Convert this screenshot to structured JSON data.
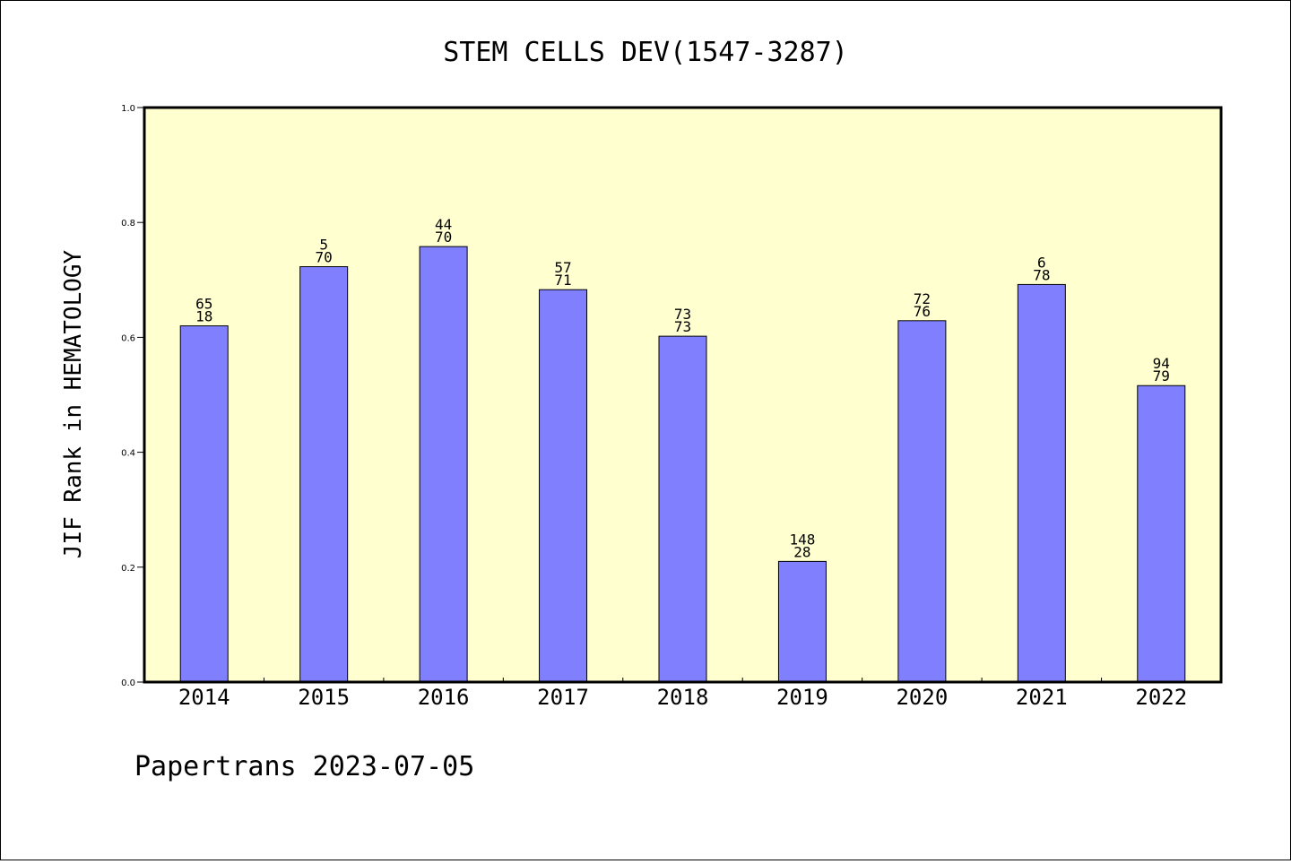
{
  "chart_data": {
    "type": "bar",
    "title": "STEM CELLS DEV(1547-3287)",
    "xlabel": "",
    "ylabel": "JIF Rank in HEMATOLOGY",
    "ylim": [
      0.0,
      1.0
    ],
    "yticks": [
      "0.0",
      "0.2",
      "0.4",
      "0.6",
      "0.8",
      "1.0"
    ],
    "grid": false,
    "categories": [
      "2014",
      "2015",
      "2016",
      "2017",
      "2018",
      "2019",
      "2020",
      "2021",
      "2022"
    ],
    "values": [
      0.62,
      0.723,
      0.758,
      0.683,
      0.602,
      0.21,
      0.629,
      0.692,
      0.516
    ],
    "labels_top": [
      "65",
      "5",
      "44",
      "57",
      "73",
      "148",
      "72",
      "6",
      "94"
    ],
    "labels_bottom": [
      "18",
      "70",
      "70",
      "71",
      "73",
      "28",
      "76",
      "78",
      "79"
    ],
    "bar_color": "#8080ff",
    "plot_background": "#ffffd0"
  },
  "footer": "Papertrans 2023-07-05"
}
